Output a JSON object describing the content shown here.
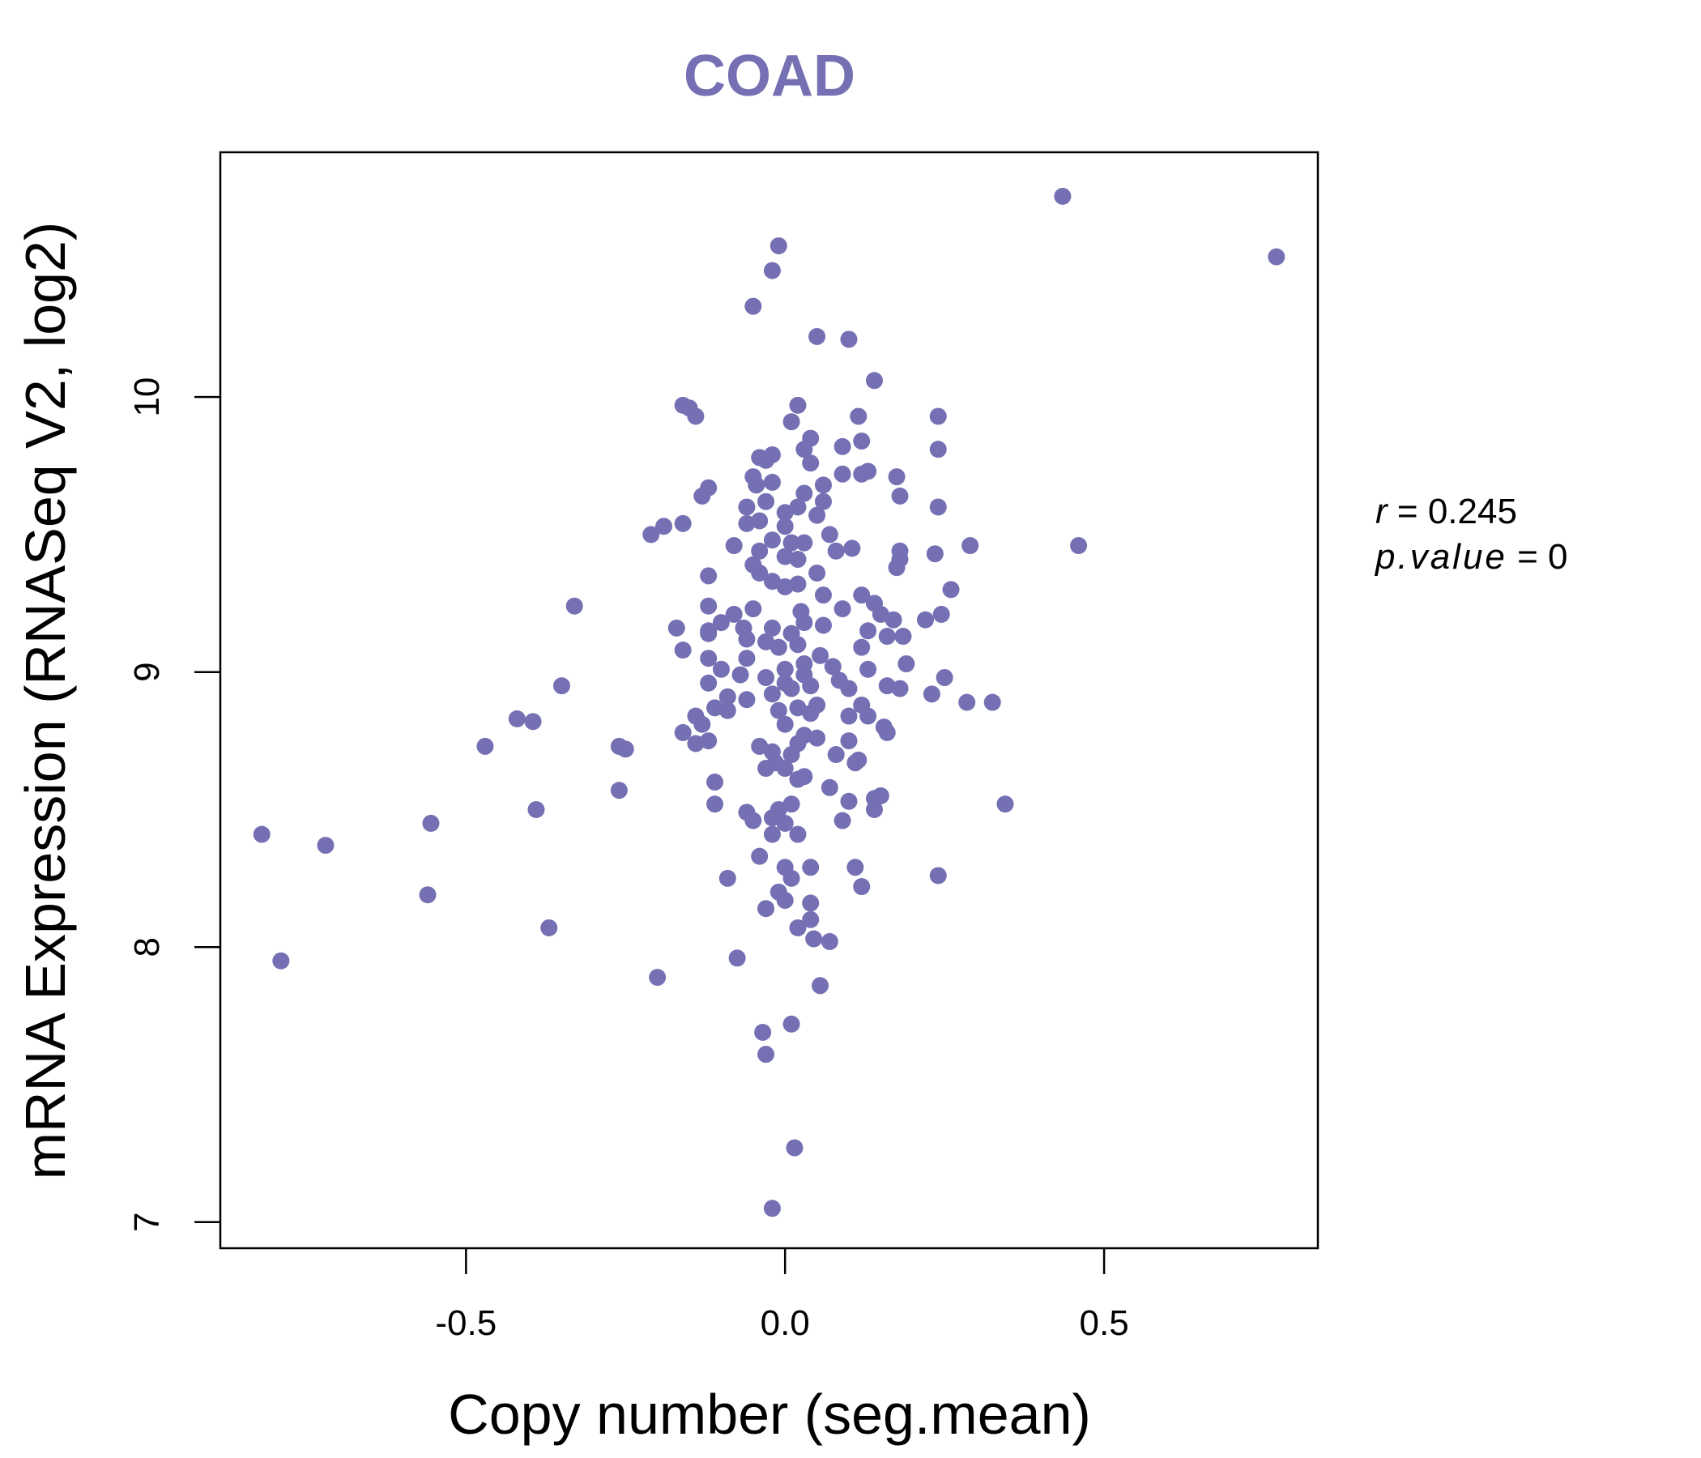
{
  "chart_data": {
    "type": "scatter",
    "title": "COAD",
    "xlabel": "Copy number (seg.mean)",
    "ylabel": "mRNA Expression (RNASeq V2, log2)",
    "xlim": [
      -0.885,
      0.835
    ],
    "ylim": [
      6.905,
      10.89
    ],
    "xticks": [
      -0.5,
      0.0,
      0.5
    ],
    "xtick_labels": [
      "-0.5",
      "0.0",
      "0.5"
    ],
    "yticks": [
      7,
      8,
      9,
      10
    ],
    "ytick_labels": [
      "7",
      "8",
      "9",
      "10"
    ],
    "point_color": "#7570b3",
    "stats": {
      "r_label": "r",
      "r_value": "0.245",
      "p_label": "p.value",
      "p_value": "0"
    },
    "points": [
      [
        0.435,
        10.73
      ],
      [
        0.77,
        10.51
      ],
      [
        -0.01,
        10.55
      ],
      [
        -0.02,
        10.46
      ],
      [
        -0.05,
        10.33
      ],
      [
        0.05,
        10.22
      ],
      [
        0.1,
        10.21
      ],
      [
        0.14,
        10.06
      ],
      [
        -0.16,
        9.97
      ],
      [
        -0.15,
        9.96
      ],
      [
        -0.14,
        9.93
      ],
      [
        0.02,
        9.97
      ],
      [
        0.01,
        9.91
      ],
      [
        0.115,
        9.93
      ],
      [
        0.24,
        9.93
      ],
      [
        0.24,
        9.81
      ],
      [
        0.09,
        9.82
      ],
      [
        0.12,
        9.84
      ],
      [
        -0.04,
        9.78
      ],
      [
        -0.02,
        9.79
      ],
      [
        0.04,
        9.85
      ],
      [
        0.03,
        9.81
      ],
      [
        -0.03,
        9.77
      ],
      [
        0.04,
        9.76
      ],
      [
        0.09,
        9.72
      ],
      [
        0.12,
        9.72
      ],
      [
        0.13,
        9.73
      ],
      [
        0.175,
        9.71
      ],
      [
        -0.05,
        9.71
      ],
      [
        -0.045,
        9.68
      ],
      [
        -0.02,
        9.69
      ],
      [
        0.06,
        9.68
      ],
      [
        -0.12,
        9.67
      ],
      [
        -0.13,
        9.64
      ],
      [
        0.03,
        9.65
      ],
      [
        0.18,
        9.64
      ],
      [
        0.24,
        9.6
      ],
      [
        -0.06,
        9.6
      ],
      [
        -0.03,
        9.62
      ],
      [
        0.0,
        9.58
      ],
      [
        0.02,
        9.6
      ],
      [
        0.05,
        9.57
      ],
      [
        0.06,
        9.62
      ],
      [
        -0.19,
        9.53
      ],
      [
        -0.16,
        9.54
      ],
      [
        -0.06,
        9.54
      ],
      [
        -0.04,
        9.55
      ],
      [
        0.0,
        9.53
      ],
      [
        0.07,
        9.5
      ],
      [
        -0.21,
        9.5
      ],
      [
        -0.08,
        9.46
      ],
      [
        -0.02,
        9.48
      ],
      [
        0.01,
        9.47
      ],
      [
        0.03,
        9.47
      ],
      [
        0.08,
        9.44
      ],
      [
        0.105,
        9.45
      ],
      [
        0.18,
        9.44
      ],
      [
        0.29,
        9.46
      ],
      [
        0.46,
        9.46
      ],
      [
        -0.04,
        9.44
      ],
      [
        0.0,
        9.42
      ],
      [
        -0.05,
        9.39
      ],
      [
        0.02,
        9.41
      ],
      [
        0.18,
        9.41
      ],
      [
        0.175,
        9.38
      ],
      [
        0.235,
        9.43
      ],
      [
        -0.12,
        9.35
      ],
      [
        -0.04,
        9.36
      ],
      [
        0.05,
        9.36
      ],
      [
        0.02,
        9.32
      ],
      [
        0.06,
        9.28
      ],
      [
        -0.02,
        9.33
      ],
      [
        0.0,
        9.31
      ],
      [
        0.26,
        9.3
      ],
      [
        -0.33,
        9.24
      ],
      [
        -0.12,
        9.24
      ],
      [
        -0.05,
        9.23
      ],
      [
        -0.08,
        9.21
      ],
      [
        0.025,
        9.22
      ],
      [
        0.09,
        9.23
      ],
      [
        0.12,
        9.28
      ],
      [
        0.14,
        9.25
      ],
      [
        0.15,
        9.21
      ],
      [
        0.17,
        9.19
      ],
      [
        0.22,
        9.19
      ],
      [
        0.245,
        9.21
      ],
      [
        -0.1,
        9.18
      ],
      [
        -0.12,
        9.15
      ],
      [
        -0.065,
        9.16
      ],
      [
        -0.02,
        9.16
      ],
      [
        0.01,
        9.14
      ],
      [
        0.03,
        9.18
      ],
      [
        0.06,
        9.17
      ],
      [
        0.13,
        9.15
      ],
      [
        0.16,
        9.13
      ],
      [
        0.185,
        9.13
      ],
      [
        -0.17,
        9.16
      ],
      [
        -0.16,
        9.08
      ],
      [
        -0.12,
        9.14
      ],
      [
        -0.06,
        9.12
      ],
      [
        -0.03,
        9.11
      ],
      [
        -0.01,
        9.09
      ],
      [
        0.02,
        9.1
      ],
      [
        0.055,
        9.06
      ],
      [
        0.12,
        9.09
      ],
      [
        -0.12,
        9.05
      ],
      [
        -0.06,
        9.05
      ],
      [
        -0.1,
        9.01
      ],
      [
        0.0,
        9.01
      ],
      [
        0.03,
        9.03
      ],
      [
        0.075,
        9.02
      ],
      [
        0.13,
        9.01
      ],
      [
        0.19,
        9.03
      ],
      [
        -0.07,
        8.99
      ],
      [
        -0.03,
        8.98
      ],
      [
        0.0,
        8.96
      ],
      [
        0.03,
        8.99
      ],
      [
        0.085,
        8.97
      ],
      [
        0.1,
        8.94
      ],
      [
        0.16,
        8.95
      ],
      [
        0.18,
        8.94
      ],
      [
        0.25,
        8.98
      ],
      [
        -0.12,
        8.96
      ],
      [
        -0.09,
        8.91
      ],
      [
        -0.06,
        8.9
      ],
      [
        -0.02,
        8.92
      ],
      [
        0.01,
        8.94
      ],
      [
        0.04,
        8.95
      ],
      [
        0.05,
        8.88
      ],
      [
        0.12,
        8.88
      ],
      [
        0.23,
        8.92
      ],
      [
        0.285,
        8.89
      ],
      [
        0.325,
        8.89
      ],
      [
        -0.35,
        8.95
      ],
      [
        -0.42,
        8.83
      ],
      [
        -0.395,
        8.82
      ],
      [
        -0.14,
        8.84
      ],
      [
        -0.11,
        8.87
      ],
      [
        -0.09,
        8.86
      ],
      [
        -0.01,
        8.86
      ],
      [
        0.02,
        8.87
      ],
      [
        0.04,
        8.85
      ],
      [
        0.1,
        8.84
      ],
      [
        0.13,
        8.84
      ],
      [
        -0.13,
        8.81
      ],
      [
        -0.16,
        8.78
      ],
      [
        0.0,
        8.81
      ],
      [
        0.03,
        8.77
      ],
      [
        0.05,
        8.76
      ],
      [
        0.155,
        8.8
      ],
      [
        0.16,
        8.78
      ],
      [
        -0.47,
        8.73
      ],
      [
        -0.26,
        8.73
      ],
      [
        -0.25,
        8.72
      ],
      [
        -0.14,
        8.74
      ],
      [
        -0.12,
        8.75
      ],
      [
        -0.04,
        8.73
      ],
      [
        -0.02,
        8.71
      ],
      [
        0.01,
        8.7
      ],
      [
        0.02,
        8.74
      ],
      [
        0.08,
        8.7
      ],
      [
        0.1,
        8.75
      ],
      [
        -0.015,
        8.67
      ],
      [
        0.0,
        8.65
      ],
      [
        0.11,
        8.67
      ],
      [
        0.115,
        8.68
      ],
      [
        -0.03,
        8.65
      ],
      [
        0.02,
        8.61
      ],
      [
        0.03,
        8.62
      ],
      [
        0.07,
        8.58
      ],
      [
        -0.11,
        8.6
      ],
      [
        -0.26,
        8.57
      ],
      [
        -0.01,
        8.5
      ],
      [
        0.01,
        8.52
      ],
      [
        0.14,
        8.54
      ],
      [
        0.15,
        8.55
      ],
      [
        0.1,
        8.53
      ],
      [
        0.345,
        8.52
      ],
      [
        -0.39,
        8.5
      ],
      [
        -0.11,
        8.52
      ],
      [
        -0.06,
        8.49
      ],
      [
        -0.05,
        8.46
      ],
      [
        -0.02,
        8.47
      ],
      [
        0.0,
        8.45
      ],
      [
        0.09,
        8.46
      ],
      [
        0.14,
        8.5
      ],
      [
        -0.555,
        8.45
      ],
      [
        -0.82,
        8.41
      ],
      [
        -0.72,
        8.37
      ],
      [
        -0.02,
        8.41
      ],
      [
        0.02,
        8.41
      ],
      [
        -0.04,
        8.33
      ],
      [
        0.0,
        8.29
      ],
      [
        0.04,
        8.29
      ],
      [
        0.11,
        8.29
      ],
      [
        -0.09,
        8.25
      ],
      [
        0.01,
        8.25
      ],
      [
        0.12,
        8.22
      ],
      [
        0.24,
        8.26
      ],
      [
        -0.56,
        8.19
      ],
      [
        -0.01,
        8.2
      ],
      [
        0.0,
        8.17
      ],
      [
        -0.03,
        8.14
      ],
      [
        0.04,
        8.16
      ],
      [
        0.04,
        8.1
      ],
      [
        0.02,
        8.07
      ],
      [
        -0.37,
        8.07
      ],
      [
        0.045,
        8.03
      ],
      [
        0.07,
        8.02
      ],
      [
        -0.79,
        7.95
      ],
      [
        -0.075,
        7.96
      ],
      [
        -0.2,
        7.89
      ],
      [
        0.055,
        7.86
      ],
      [
        0.01,
        7.72
      ],
      [
        -0.035,
        7.69
      ],
      [
        -0.03,
        7.61
      ],
      [
        0.015,
        7.27
      ],
      [
        -0.02,
        7.05
      ]
    ]
  }
}
